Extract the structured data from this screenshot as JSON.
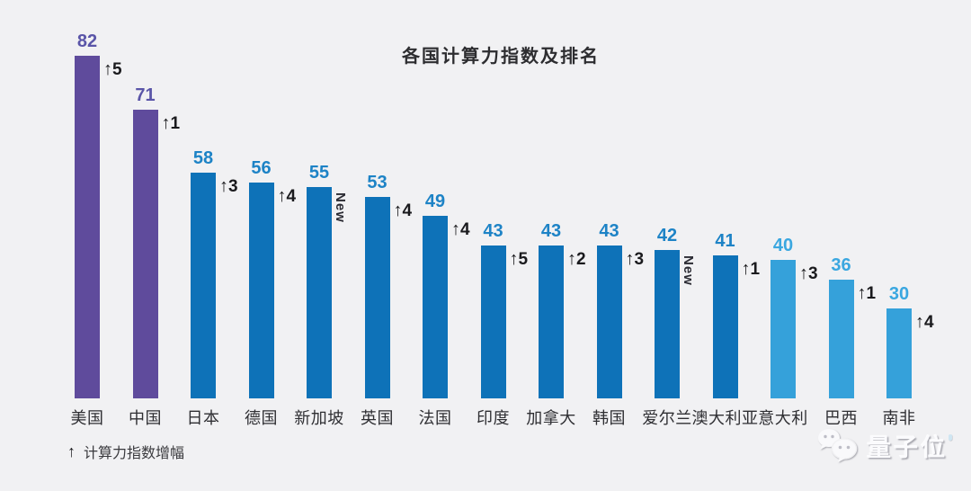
{
  "chart_data": {
    "type": "bar",
    "title": "各国计算力指数及排名",
    "categories": [
      "美国",
      "中国",
      "日本",
      "德国",
      "新加坡",
      "英国",
      "法国",
      "印度",
      "加拿大",
      "韩国",
      "爱尔兰",
      "澳大利亚",
      "意大利",
      "巴西",
      "南非"
    ],
    "values": [
      82,
      71,
      58,
      56,
      55,
      53,
      49,
      43,
      43,
      43,
      42,
      41,
      40,
      36,
      30
    ],
    "rank_changes": [
      "↑5",
      "↑1",
      "↑3",
      "↑4",
      "New",
      "↑4",
      "↑4",
      "↑5",
      "↑2",
      "↑3",
      "New",
      "↑1",
      "↑3",
      "↑1",
      "↑4"
    ],
    "bar_color_keys": [
      "purple",
      "purple",
      "blue",
      "blue",
      "blue",
      "blue",
      "blue",
      "blue",
      "blue",
      "blue",
      "blue",
      "blue",
      "light_blue",
      "light_blue",
      "light_blue"
    ],
    "palette": {
      "purple_bar": "#5f4b9c",
      "purple_label": "#5a55a8",
      "blue_bar": "#0e72b8",
      "blue_label": "#1d83c6",
      "light_blue_bar": "#35a1da",
      "light_blue_label": "#3aa7e0",
      "annotation": "#1a1a1d"
    },
    "xlabel": "",
    "ylabel": "",
    "ylim": [
      12,
      95
    ],
    "grid": false,
    "value_labels": "above-bar",
    "legend_position": "bottom-left"
  },
  "legend": {
    "arrow_symbol": "↑",
    "label": "计算力指数增幅"
  },
  "watermark": {
    "brand": "量子位"
  }
}
